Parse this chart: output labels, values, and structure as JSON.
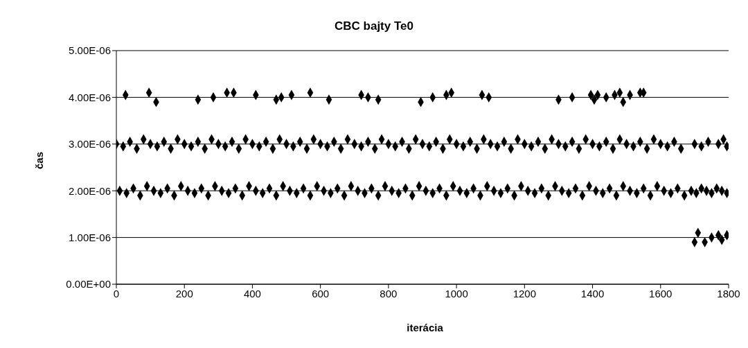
{
  "chart_data": {
    "type": "scatter",
    "title": "CBC bajty Te0",
    "xlabel": "iterácia",
    "ylabel": "čas",
    "xlim": [
      0,
      1800
    ],
    "xticks": [
      0,
      200,
      400,
      600,
      800,
      1000,
      1200,
      1400,
      1600,
      1800
    ],
    "ylim": [
      0,
      5e-06
    ],
    "yticks": [
      {
        "value": 0,
        "label": "0.00E+00"
      },
      {
        "value": 1e-06,
        "label": "1.00E-06"
      },
      {
        "value": 2e-06,
        "label": "2.00E-06"
      },
      {
        "value": 3e-06,
        "label": "3.00E-06"
      },
      {
        "value": 4e-06,
        "label": "4.00E-06"
      },
      {
        "value": 5e-06,
        "label": "5.00E-06"
      }
    ],
    "grid": "y",
    "marker": "diamond",
    "series": [
      {
        "color": "#000000",
        "x": [
          27,
          96,
          117,
          240,
          285,
          325,
          345,
          410,
          470,
          485,
          515,
          570,
          625,
          720,
          740,
          770,
          895,
          930,
          970,
          985,
          1075,
          1095,
          1300,
          1340,
          1395,
          1405,
          1415,
          1440,
          1465,
          1480,
          1490,
          1510,
          1540,
          1550
        ],
        "values": [
          4.05e-06,
          4.1e-06,
          3.9e-06,
          3.95e-06,
          4e-06,
          4.1e-06,
          4.1e-06,
          4.05e-06,
          3.95e-06,
          4e-06,
          4.05e-06,
          4.1e-06,
          3.95e-06,
          4.05e-06,
          4e-06,
          3.95e-06,
          3.9e-06,
          4e-06,
          4.05e-06,
          4.1e-06,
          4.05e-06,
          4e-06,
          3.95e-06,
          4e-06,
          4.05e-06,
          3.95e-06,
          4.05e-06,
          4e-06,
          4.05e-06,
          4.1e-06,
          3.9e-06,
          4.05e-06,
          4.1e-06,
          4.1e-06
        ]
      },
      {
        "color": "#000000",
        "x": [
          0,
          20,
          40,
          60,
          80,
          100,
          120,
          140,
          160,
          180,
          200,
          220,
          240,
          260,
          280,
          300,
          320,
          340,
          360,
          380,
          400,
          420,
          440,
          460,
          480,
          500,
          520,
          540,
          560,
          580,
          600,
          620,
          640,
          660,
          680,
          700,
          720,
          740,
          760,
          780,
          800,
          820,
          840,
          860,
          880,
          900,
          920,
          940,
          960,
          980,
          1000,
          1020,
          1040,
          1060,
          1080,
          1100,
          1120,
          1140,
          1160,
          1180,
          1200,
          1220,
          1240,
          1260,
          1280,
          1300,
          1320,
          1340,
          1360,
          1380,
          1400,
          1420,
          1440,
          1460,
          1480,
          1500,
          1520,
          1540,
          1560,
          1580,
          1600,
          1620,
          1640,
          1660,
          1700,
          1720,
          1740,
          1770,
          1785,
          1795
        ],
        "values": [
          3e-06,
          2.95e-06,
          3.05e-06,
          2.9e-06,
          3.1e-06,
          3e-06,
          2.95e-06,
          3.05e-06,
          2.9e-06,
          3.1e-06,
          3e-06,
          2.95e-06,
          3.05e-06,
          2.9e-06,
          3.1e-06,
          3e-06,
          2.95e-06,
          3.05e-06,
          2.9e-06,
          3.1e-06,
          3e-06,
          2.95e-06,
          3.05e-06,
          2.9e-06,
          3.1e-06,
          3e-06,
          2.95e-06,
          3.05e-06,
          2.9e-06,
          3.1e-06,
          3e-06,
          2.95e-06,
          3.05e-06,
          2.9e-06,
          3.1e-06,
          3e-06,
          2.95e-06,
          3.05e-06,
          2.9e-06,
          3.1e-06,
          3e-06,
          2.95e-06,
          3.05e-06,
          2.9e-06,
          3.1e-06,
          3e-06,
          2.95e-06,
          3.05e-06,
          2.9e-06,
          3.1e-06,
          3e-06,
          2.95e-06,
          3.05e-06,
          2.9e-06,
          3.1e-06,
          3e-06,
          2.95e-06,
          3.05e-06,
          2.9e-06,
          3.1e-06,
          3e-06,
          2.95e-06,
          3.05e-06,
          2.9e-06,
          3.1e-06,
          3e-06,
          2.95e-06,
          3.05e-06,
          2.9e-06,
          3.1e-06,
          3e-06,
          2.95e-06,
          3.05e-06,
          2.9e-06,
          3.1e-06,
          3e-06,
          2.95e-06,
          3.05e-06,
          2.9e-06,
          3.1e-06,
          3e-06,
          2.95e-06,
          3.05e-06,
          2.9e-06,
          3e-06,
          2.95e-06,
          3.05e-06,
          3e-06,
          3.1e-06,
          2.95e-06
        ]
      },
      {
        "color": "#000000",
        "x": [
          10,
          30,
          50,
          70,
          90,
          110,
          130,
          150,
          170,
          190,
          210,
          230,
          250,
          270,
          290,
          310,
          330,
          350,
          370,
          390,
          410,
          430,
          450,
          470,
          490,
          510,
          530,
          550,
          570,
          590,
          610,
          630,
          650,
          670,
          690,
          710,
          730,
          750,
          770,
          790,
          810,
          830,
          850,
          870,
          890,
          910,
          930,
          950,
          970,
          990,
          1010,
          1030,
          1050,
          1070,
          1090,
          1110,
          1130,
          1150,
          1170,
          1190,
          1210,
          1230,
          1250,
          1270,
          1290,
          1310,
          1330,
          1350,
          1370,
          1390,
          1410,
          1430,
          1450,
          1470,
          1490,
          1510,
          1530,
          1550,
          1570,
          1590,
          1610,
          1630,
          1650,
          1670,
          1690,
          1705,
          1720,
          1735,
          1750,
          1765,
          1780,
          1795
        ],
        "values": [
          2e-06,
          1.95e-06,
          2.05e-06,
          1.9e-06,
          2.1e-06,
          2e-06,
          1.95e-06,
          2.05e-06,
          1.9e-06,
          2.1e-06,
          2e-06,
          1.95e-06,
          2.05e-06,
          1.9e-06,
          2.1e-06,
          2e-06,
          1.95e-06,
          2.05e-06,
          1.9e-06,
          2.1e-06,
          2e-06,
          1.95e-06,
          2.05e-06,
          1.9e-06,
          2.1e-06,
          2e-06,
          1.95e-06,
          2.05e-06,
          1.9e-06,
          2.1e-06,
          2e-06,
          1.95e-06,
          2.05e-06,
          1.9e-06,
          2.1e-06,
          2e-06,
          1.95e-06,
          2.05e-06,
          1.9e-06,
          2.1e-06,
          2e-06,
          1.95e-06,
          2.05e-06,
          1.9e-06,
          2.1e-06,
          2e-06,
          1.95e-06,
          2.05e-06,
          1.9e-06,
          2.1e-06,
          2e-06,
          1.95e-06,
          2.05e-06,
          1.9e-06,
          2.1e-06,
          2e-06,
          1.95e-06,
          2.05e-06,
          1.9e-06,
          2.1e-06,
          2e-06,
          1.95e-06,
          2.05e-06,
          1.9e-06,
          2.1e-06,
          2e-06,
          1.95e-06,
          2.05e-06,
          1.9e-06,
          2.1e-06,
          2e-06,
          1.95e-06,
          2.05e-06,
          1.9e-06,
          2.1e-06,
          2e-06,
          1.95e-06,
          2.05e-06,
          1.9e-06,
          2.1e-06,
          2e-06,
          1.95e-06,
          2.05e-06,
          1.9e-06,
          2e-06,
          1.95e-06,
          2.05e-06,
          2e-06,
          1.95e-06,
          2.05e-06,
          2e-06,
          1.95e-06
        ]
      },
      {
        "color": "#000000",
        "x": [
          1700,
          1710,
          1730,
          1750,
          1770,
          1780,
          1795
        ],
        "values": [
          9e-07,
          1.1e-06,
          9e-07,
          1e-06,
          1.05e-06,
          9.5e-07,
          1.05e-06
        ]
      }
    ]
  }
}
